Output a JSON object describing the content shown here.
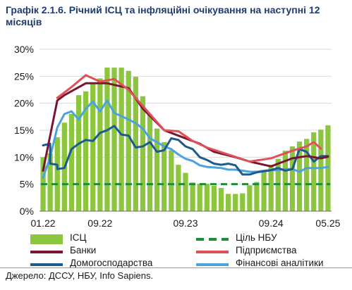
{
  "header": {
    "figure_no": "Графік 2.1.6.",
    "title": "Річний ІСЦ та інфляційні очікування на наступні 12 місяців"
  },
  "source": "Джерело: ДССУ, НБУ, Info Sapiens.",
  "chart_data": {
    "type": "bar",
    "ylim": [
      0,
      30
    ],
    "yticks": [
      "0%",
      "5%",
      "10%",
      "15%",
      "20%",
      "25%",
      "30%"
    ],
    "ytick_values": [
      0,
      5,
      10,
      15,
      20,
      25,
      30
    ],
    "xtick_labels": [
      "01.22",
      "09.22",
      "09.23",
      "09.24",
      "05.25"
    ],
    "xtick_indices": [
      0,
      8,
      20,
      32,
      40
    ],
    "grid": true,
    "legend_placement": "bottom",
    "colors": {
      "cpi": "#8cc63f",
      "nbu_target": "#1e8c3a",
      "banks": "#7a1530",
      "enterprises": "#e0505a",
      "households": "#1d5a8e",
      "analysts": "#4aa3dd"
    },
    "months": [
      "01.22",
      "02.22",
      "03.22",
      "04.22",
      "05.22",
      "06.22",
      "07.22",
      "08.22",
      "09.22",
      "10.22",
      "11.22",
      "12.22",
      "01.23",
      "02.23",
      "03.23",
      "04.23",
      "05.23",
      "06.23",
      "07.23",
      "08.23",
      "09.23",
      "10.23",
      "11.23",
      "12.23",
      "01.24",
      "02.24",
      "03.24",
      "04.24",
      "05.24",
      "06.24",
      "07.24",
      "08.24",
      "09.24",
      "10.24",
      "11.24",
      "12.24",
      "01.25",
      "02.25",
      "03.25",
      "04.25",
      "05.25"
    ],
    "series": [
      {
        "key": "cpi",
        "name": "ІСЦ",
        "kind": "bar",
        "values": [
          10.0,
          10.7,
          13.7,
          16.4,
          18.0,
          21.5,
          22.2,
          23.8,
          24.6,
          26.6,
          26.6,
          26.6,
          26.0,
          24.9,
          21.3,
          17.9,
          15.3,
          12.8,
          11.3,
          8.6,
          7.1,
          5.3,
          5.1,
          5.1,
          4.7,
          4.3,
          3.2,
          3.2,
          3.3,
          4.8,
          5.4,
          7.5,
          8.6,
          9.7,
          11.2,
          12.0,
          12.9,
          13.4,
          14.6,
          15.1,
          15.9
        ]
      },
      {
        "key": "nbu_target",
        "name": "Ціль НБУ",
        "kind": "dashed",
        "value": 5
      },
      {
        "key": "banks",
        "name": "Банки",
        "kind": "line",
        "points": [
          [
            0,
            7.5
          ],
          [
            2,
            20.5
          ],
          [
            3,
            21.5
          ],
          [
            6,
            23.7
          ],
          [
            9,
            23.7
          ],
          [
            12,
            22.8
          ],
          [
            14,
            19.0
          ],
          [
            17,
            15.0
          ],
          [
            19,
            14.0
          ],
          [
            22,
            12.5
          ],
          [
            24,
            11.0
          ],
          [
            27,
            10.0
          ],
          [
            29,
            9.2
          ],
          [
            32,
            8.3
          ],
          [
            33,
            8.8
          ],
          [
            35,
            9.8
          ],
          [
            37,
            10.2
          ],
          [
            38,
            10.0
          ],
          [
            39,
            9.8
          ],
          [
            40,
            10.1
          ]
        ]
      },
      {
        "key": "enterprises",
        "name": "Підприємства",
        "kind": "line",
        "points": [
          [
            2,
            21.0
          ],
          [
            4,
            23.0
          ],
          [
            6,
            25.2
          ],
          [
            8,
            24.0
          ],
          [
            10,
            24.5
          ],
          [
            12,
            22.5
          ],
          [
            15,
            18.0
          ],
          [
            17,
            15.0
          ],
          [
            19,
            14.8
          ],
          [
            21,
            13.0
          ],
          [
            23,
            11.8
          ],
          [
            26,
            10.5
          ],
          [
            29,
            9.2
          ],
          [
            32,
            9.8
          ],
          [
            35,
            11.2
          ],
          [
            37,
            12.0
          ],
          [
            38,
            12.8
          ],
          [
            39,
            11.6
          ]
        ]
      },
      {
        "key": "households",
        "name": "Домогосподарства",
        "kind": "line",
        "points": [
          [
            0,
            12.2
          ],
          [
            1,
            12.5
          ],
          [
            1,
            8.8
          ],
          [
            2,
            8.6
          ],
          [
            2,
            7.8
          ],
          [
            3,
            8.0
          ],
          [
            4,
            11.5
          ],
          [
            5,
            12.5
          ],
          [
            6,
            13.2
          ],
          [
            7,
            13.0
          ],
          [
            8,
            14.5
          ],
          [
            9,
            15.0
          ],
          [
            10,
            15.8
          ],
          [
            11,
            14.2
          ],
          [
            12,
            14.0
          ],
          [
            13,
            11.8
          ],
          [
            14,
            12.0
          ],
          [
            15,
            12.8
          ],
          [
            16,
            11.0
          ],
          [
            17,
            11.3
          ],
          [
            18,
            13.5
          ],
          [
            19,
            13.2
          ],
          [
            20,
            12.0
          ],
          [
            21,
            11.5
          ],
          [
            22,
            10.0
          ],
          [
            23,
            9.5
          ],
          [
            24,
            8.8
          ],
          [
            25,
            8.6
          ],
          [
            26,
            8.8
          ],
          [
            27,
            8.5
          ],
          [
            28,
            6.8
          ],
          [
            29,
            6.8
          ],
          [
            30,
            7.2
          ],
          [
            31,
            7.4
          ],
          [
            32,
            7.6
          ],
          [
            33,
            8.0
          ],
          [
            34,
            7.5
          ],
          [
            35,
            7.8
          ],
          [
            36,
            11.5
          ],
          [
            37,
            11.0
          ],
          [
            38,
            9.2
          ],
          [
            39,
            10.2
          ],
          [
            40,
            10.2
          ]
        ]
      },
      {
        "key": "analysts",
        "name": "Фінансові аналітики",
        "kind": "line",
        "points": [
          [
            0,
            6.2
          ],
          [
            1,
            10.0
          ],
          [
            2,
            15.5
          ],
          [
            3,
            18.0
          ],
          [
            4,
            18.5
          ],
          [
            5,
            17.0
          ],
          [
            6,
            19.0
          ],
          [
            7,
            20.3
          ],
          [
            8,
            18.5
          ],
          [
            9,
            20.5
          ],
          [
            10,
            18.2
          ],
          [
            11,
            17.6
          ],
          [
            12,
            17.0
          ],
          [
            13,
            16.3
          ],
          [
            14,
            15.3
          ],
          [
            15,
            13.5
          ],
          [
            16,
            12.8
          ],
          [
            17,
            12.0
          ],
          [
            18,
            11.5
          ],
          [
            19,
            10.5
          ],
          [
            20,
            9.7
          ],
          [
            21,
            9.3
          ],
          [
            22,
            8.5
          ],
          [
            23,
            8.2
          ],
          [
            24,
            8.1
          ],
          [
            25,
            8.0
          ],
          [
            26,
            7.7
          ],
          [
            27,
            7.7
          ],
          [
            28,
            7.5
          ],
          [
            29,
            7.3
          ],
          [
            30,
            7.3
          ],
          [
            31,
            7.5
          ],
          [
            32,
            7.6
          ],
          [
            33,
            7.6
          ],
          [
            34,
            7.8
          ],
          [
            35,
            7.8
          ],
          [
            36,
            7.3
          ],
          [
            37,
            8.0
          ],
          [
            38,
            8.0
          ],
          [
            39,
            8.0
          ],
          [
            40,
            8.2
          ]
        ]
      }
    ]
  }
}
